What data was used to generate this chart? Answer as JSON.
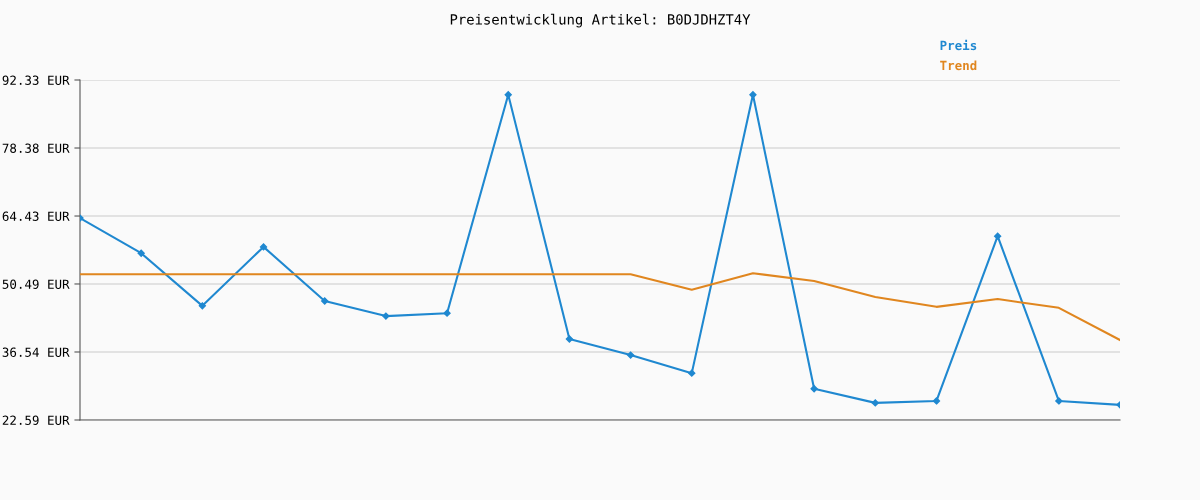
{
  "chart_data": {
    "type": "line",
    "title": "Preisentwicklung Artikel: B0DJDHZT4Y",
    "categories": [
      null,
      null,
      null,
      null,
      null,
      null,
      null,
      null,
      null,
      null,
      null,
      null,
      null,
      null,
      null,
      null,
      null,
      null
    ],
    "series": [
      {
        "name": "Preis",
        "color": "#1f88d0",
        "marker": "diamond",
        "values": [
          64.0,
          56.8,
          46.0,
          58.1,
          47.0,
          43.9,
          44.5,
          89.3,
          39.2,
          35.9,
          32.2,
          89.3,
          29.0,
          26.1,
          26.5,
          60.3,
          26.5,
          25.7
        ]
      },
      {
        "name": "Trend",
        "color": "#e0861f",
        "marker": "none",
        "values": [
          52.5,
          52.5,
          52.5,
          52.5,
          52.5,
          52.5,
          52.5,
          52.5,
          52.5,
          52.5,
          49.3,
          52.7,
          51.1,
          47.8,
          45.8,
          47.4,
          45.6,
          39.0
        ]
      }
    ],
    "ylim": [
      22.59,
      92.33
    ],
    "yticks": [
      {
        "value": 22.59,
        "label": "22.59 EUR"
      },
      {
        "value": 36.54,
        "label": "36.54 EUR"
      },
      {
        "value": 50.49,
        "label": "50.49 EUR"
      },
      {
        "value": 64.43,
        "label": "64.43 EUR"
      },
      {
        "value": 78.38,
        "label": "78.38 EUR"
      },
      {
        "value": 92.33,
        "label": "92.33 EUR"
      }
    ],
    "grid": "y",
    "legend": "top right",
    "line_style": "solid"
  }
}
